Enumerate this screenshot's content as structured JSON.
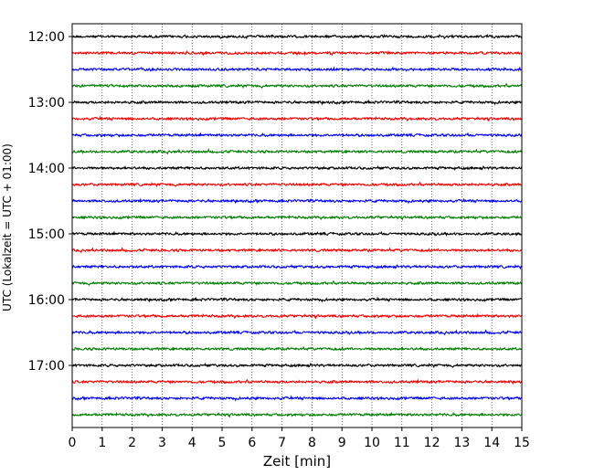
{
  "chart_data": {
    "type": "line",
    "title": "",
    "xlabel": "Zeit  [min]",
    "ylabel": "UTC (Lokalzeit = UTC + 01:00)",
    "xlim": [
      0,
      15
    ],
    "x_ticks": [
      "0",
      "1",
      "2",
      "3",
      "4",
      "5",
      "6",
      "7",
      "8",
      "9",
      "10",
      "11",
      "12",
      "13",
      "14",
      "15"
    ],
    "y_ticks": [
      "12:00",
      "13:00",
      "14:00",
      "15:00",
      "16:00",
      "17:00"
    ],
    "grid": "vertical dotted at each minute",
    "trace_interval_minutes": 15,
    "trace_color_cycle": [
      "#000000",
      "#ff0000",
      "#0000ff",
      "#008000"
    ],
    "traces": [
      {
        "start": "12:00"
      },
      {
        "start": "12:15"
      },
      {
        "start": "12:30"
      },
      {
        "start": "12:45"
      },
      {
        "start": "13:00"
      },
      {
        "start": "13:15"
      },
      {
        "start": "13:30"
      },
      {
        "start": "13:45"
      },
      {
        "start": "14:00"
      },
      {
        "start": "14:15"
      },
      {
        "start": "14:30"
      },
      {
        "start": "14:45"
      },
      {
        "start": "15:00"
      },
      {
        "start": "15:15"
      },
      {
        "start": "15:30"
      },
      {
        "start": "15:45"
      },
      {
        "start": "16:00"
      },
      {
        "start": "16:15"
      },
      {
        "start": "16:30"
      },
      {
        "start": "16:45"
      },
      {
        "start": "17:00"
      },
      {
        "start": "17:15"
      },
      {
        "start": "17:30"
      },
      {
        "start": "17:45"
      }
    ]
  }
}
